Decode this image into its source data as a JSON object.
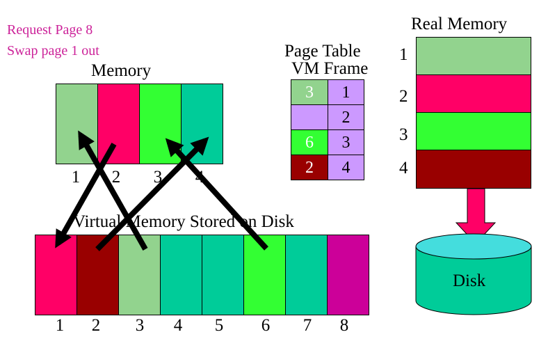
{
  "notes": {
    "line1": "Request Page 8",
    "line2": "Swap page 1 out"
  },
  "memory": {
    "title": "Memory",
    "frames": [
      {
        "label": "1",
        "color": "#92d38e"
      },
      {
        "label": "2",
        "color": "#ff0066"
      },
      {
        "label": "3",
        "color": "#33ff33"
      },
      {
        "label": "4",
        "color": "#00cc99"
      }
    ]
  },
  "page_table": {
    "title": "Page Table",
    "header": "VM Frame",
    "rows": [
      {
        "vm": "3",
        "vm_color": "#92d38e",
        "frame": "1"
      },
      {
        "vm": "",
        "vm_color": "#cc99ff",
        "frame": "2"
      },
      {
        "vm": "6",
        "vm_color": "#33ff33",
        "frame": "3"
      },
      {
        "vm": "2",
        "vm_color": "#990000",
        "frame": "4"
      }
    ],
    "frame_color": "#cc99ff"
  },
  "real_memory": {
    "title": "Real Memory",
    "blocks": [
      {
        "label": "1",
        "color": "#92d38e"
      },
      {
        "label": "2",
        "color": "#ff0066"
      },
      {
        "label": "3",
        "color": "#33ff33"
      },
      {
        "label": "4",
        "color": "#990000"
      }
    ]
  },
  "disk": {
    "label": "Disk",
    "color": "#00cc99",
    "top_color": "#44dddd",
    "arrow_color": "#ff0066"
  },
  "virtual_memory": {
    "title": "Virtual Memory Stored on Disk",
    "pages": [
      {
        "label": "1",
        "color": "#ff0066"
      },
      {
        "label": "2",
        "color": "#990000"
      },
      {
        "label": "3",
        "color": "#92d38e"
      },
      {
        "label": "4",
        "color": "#00cc99"
      },
      {
        "label": "5",
        "color": "#00cc99"
      },
      {
        "label": "6",
        "color": "#33ff33"
      },
      {
        "label": "7",
        "color": "#00cc99"
      },
      {
        "label": "8",
        "color": "#cc0099"
      }
    ]
  }
}
